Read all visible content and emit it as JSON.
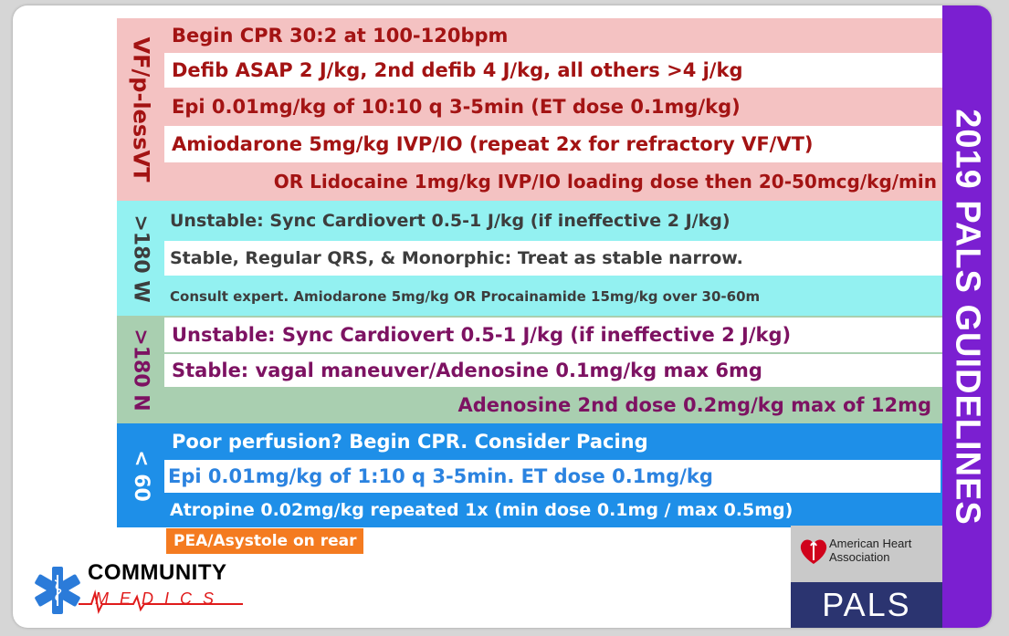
{
  "sidebar": {
    "title": "2019 PALS GUIDELINES"
  },
  "sections": {
    "vf": {
      "label": "VF/p-lessVT",
      "rows": [
        "Begin CPR 30:2 at 100-120bpm",
        "Defib ASAP 2 J/kg, 2nd defib 4 J/kg, all others >4 j/kg",
        "Epi 0.01mg/kg of 10:10 q 3-5min (ET dose 0.1mg/kg)",
        "Amiodarone 5mg/kg IVP/IO (repeat 2x for refractory VF/VT)",
        "OR Lidocaine 1mg/kg IVP/IO loading dose then 20-50mcg/kg/min"
      ]
    },
    "wide": {
      "label": ">180 W",
      "rows": [
        "Unstable: Sync Cardiovert 0.5-1 J/kg (if ineffective 2 J/kg)",
        "Stable, Regular QRS, & Monorphic: Treat as stable narrow.",
        "Consult expert. Amiodarone 5mg/kg  OR Procainamide 15mg/kg over 30-60m"
      ]
    },
    "narrow": {
      "label": ">180 N",
      "rows": [
        "Unstable: Sync Cardiovert 0.5-1 J/kg (if ineffective 2 J/kg)",
        "Stable: vagal maneuver/Adenosine 0.1mg/kg max 6mg",
        "Adenosine 2nd dose 0.2mg/kg max of 12mg"
      ]
    },
    "brady": {
      "label": "< 60",
      "rows": [
        "Poor perfusion? Begin CPR.   Consider Pacing",
        "Epi 0.01mg/kg of 1:10 q 3-5min. ET dose 0.1mg/kg",
        "Atropine 0.02mg/kg repeated 1x (min dose 0.1mg / max 0.5mg)"
      ]
    }
  },
  "footer_note": "PEA/Asystole on rear",
  "logo": {
    "line1": "COMMUNITY",
    "line2": "MEDICS"
  },
  "aha": {
    "line1": "American Heart",
    "line2": "Association",
    "badge": "PALS"
  },
  "colors": {
    "vf_bg": "#f4c2c2",
    "vf_text": "#a31313",
    "wide_bg": "#93f1f1",
    "wide_text": "#3d3d3d",
    "narrow_bg": "#a9cfb0",
    "narrow_text": "#7d1262",
    "brady_bg": "#1e8fe8",
    "brady_alt_text": "#2b83e0",
    "orange": "#f47b20",
    "purple": "#7b1fd1",
    "navy": "#2b3470"
  }
}
